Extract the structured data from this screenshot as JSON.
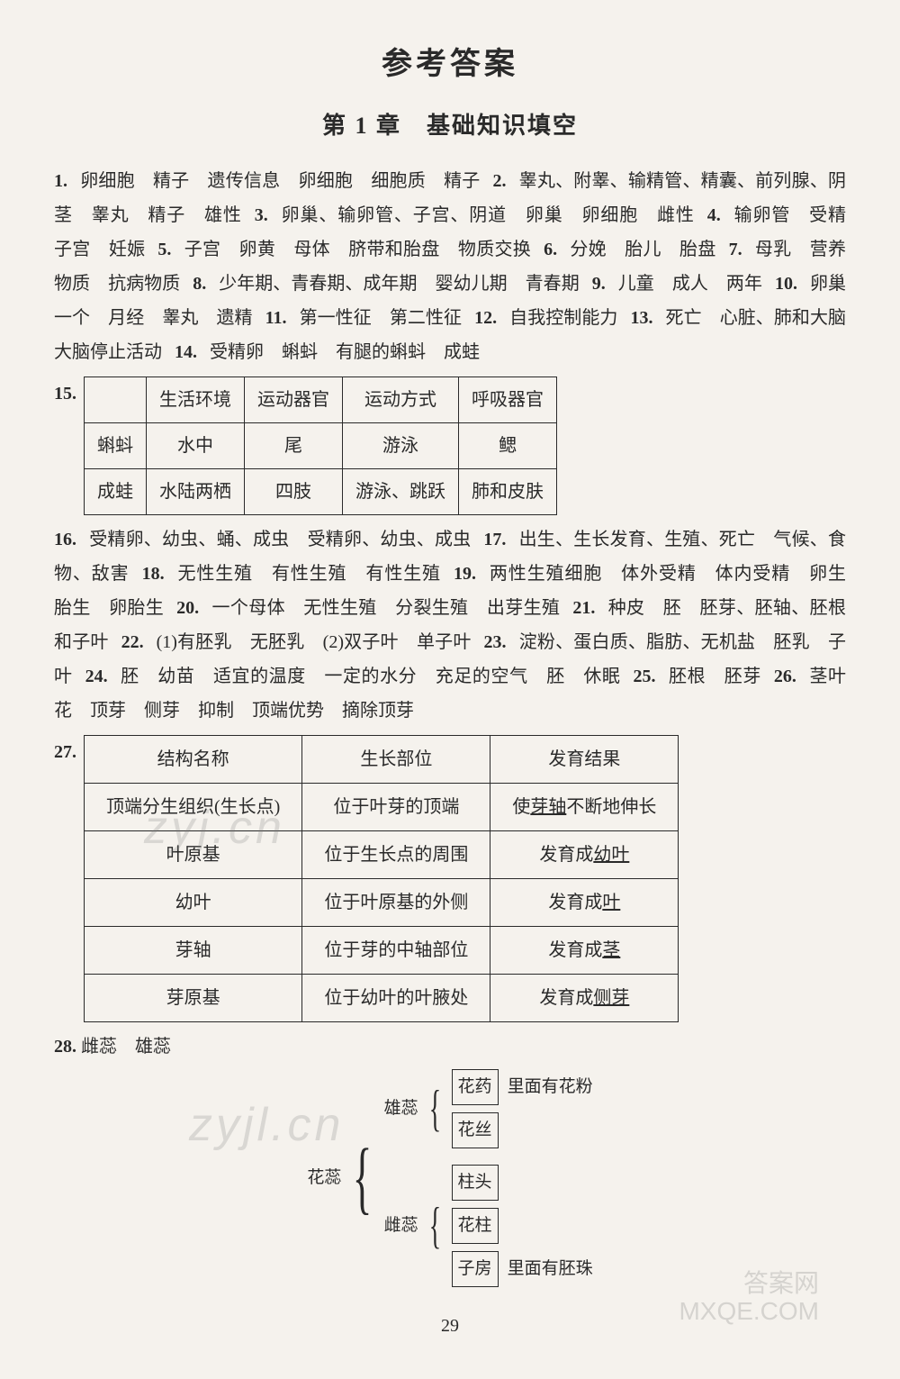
{
  "title_main": "参考答案",
  "title_sub": "第 1 章　基础知识填空",
  "block1": [
    {
      "n": "1.",
      "t": "卵细胞　精子　遗传信息　卵细胞　细胞质　精子"
    },
    {
      "n": "2.",
      "t": "睾丸、附睾、输精管、精囊、前列腺、阴茎　睾丸　精子　雄性"
    },
    {
      "n": "3.",
      "t": "卵巢、输卵管、子宫、阴道　卵巢　卵细胞　雌性"
    },
    {
      "n": "4.",
      "t": "输卵管　受精　子宫　妊娠"
    },
    {
      "n": "5.",
      "t": "子宫　卵黄　母体　脐带和胎盘　物质交换"
    },
    {
      "n": "6.",
      "t": "分娩　胎儿　胎盘"
    },
    {
      "n": "7.",
      "t": "母乳　营养物质　抗病物质"
    },
    {
      "n": "8.",
      "t": "少年期、青春期、成年期　婴幼儿期　青春期"
    },
    {
      "n": "9.",
      "t": "儿童　成人　两年"
    },
    {
      "n": "10.",
      "t": "卵巢　一个　月经　睾丸　遗精"
    },
    {
      "n": "11.",
      "t": "第一性征　第二性征"
    },
    {
      "n": "12.",
      "t": "自我控制能力"
    },
    {
      "n": "13.",
      "t": "死亡　心脏、肺和大脑　大脑停止活动"
    },
    {
      "n": "14.",
      "t": "受精卵　蝌蚪　有腿的蝌蚪　成蛙"
    }
  ],
  "q15_num": "15.",
  "table15": {
    "headers": [
      "",
      "生活环境",
      "运动器官",
      "运动方式",
      "呼吸器官"
    ],
    "rows": [
      [
        "蝌蚪",
        "水中",
        "尾",
        "游泳",
        "鳃"
      ],
      [
        "成蛙",
        "水陆两栖",
        "四肢",
        "游泳、跳跃",
        "肺和皮肤"
      ]
    ]
  },
  "block2": [
    {
      "n": "16.",
      "t": "受精卵、幼虫、蛹、成虫　受精卵、幼虫、成虫"
    },
    {
      "n": "17.",
      "t": "出生、生长发育、生殖、死亡　气候、食物、敌害"
    },
    {
      "n": "18.",
      "t": "无性生殖　有性生殖　有性生殖"
    },
    {
      "n": "19.",
      "t": "两性生殖细胞　体外受精　体内受精　卵生　胎生　卵胎生"
    },
    {
      "n": "20.",
      "t": "一个母体　无性生殖　分裂生殖　出芽生殖"
    },
    {
      "n": "21.",
      "t": "种皮　胚　胚芽、胚轴、胚根和子叶"
    },
    {
      "n": "22.",
      "t": "(1)有胚乳　无胚乳　(2)双子叶　单子叶"
    },
    {
      "n": "23.",
      "t": "淀粉、蛋白质、脂肪、无机盐　胚乳　子叶"
    },
    {
      "n": "24.",
      "t": "胚　幼苗　适宜的温度　一定的水分　充足的空气　胚　休眠"
    },
    {
      "n": "25.",
      "t": "胚根　胚芽"
    },
    {
      "n": "26.",
      "t": "茎叶　花　顶芽　侧芽　抑制　顶端优势　摘除顶芽"
    }
  ],
  "q27_num": "27.",
  "table27": {
    "headers": [
      "结构名称",
      "生长部位",
      "发育结果"
    ],
    "rows": [
      [
        "顶端分生组织(生长点)",
        "位于叶芽的顶端",
        "使芽轴不断地伸长",
        "芽轴"
      ],
      [
        "叶原基",
        "位于生长点的周围",
        "发育成幼叶",
        "幼叶"
      ],
      [
        "幼叶",
        "位于叶原基的外侧",
        "发育成叶",
        "叶"
      ],
      [
        "芽轴",
        "位于芽的中轴部位",
        "发育成茎",
        "茎"
      ],
      [
        "芽原基",
        "位于幼叶的叶腋处",
        "发育成侧芽",
        "侧芽"
      ]
    ]
  },
  "q28": {
    "n": "28.",
    "t": "雌蕊　雄蕊"
  },
  "tree": {
    "root": "花蕊",
    "upper": {
      "label": "雄蕊",
      "items": [
        {
          "box": "花药",
          "note": "里面有花粉"
        },
        {
          "box": "花丝",
          "note": ""
        }
      ]
    },
    "lower": {
      "label": "雌蕊",
      "items": [
        {
          "box": "柱头",
          "note": ""
        },
        {
          "box": "花柱",
          "note": ""
        },
        {
          "box": "子房",
          "note": "里面有胚珠"
        }
      ]
    }
  },
  "page_num": "29",
  "watermarks": {
    "w1": "zyj.cn",
    "w2": "zyjl.cn",
    "corner1": "答案网",
    "corner2": "MXQE.COM"
  }
}
